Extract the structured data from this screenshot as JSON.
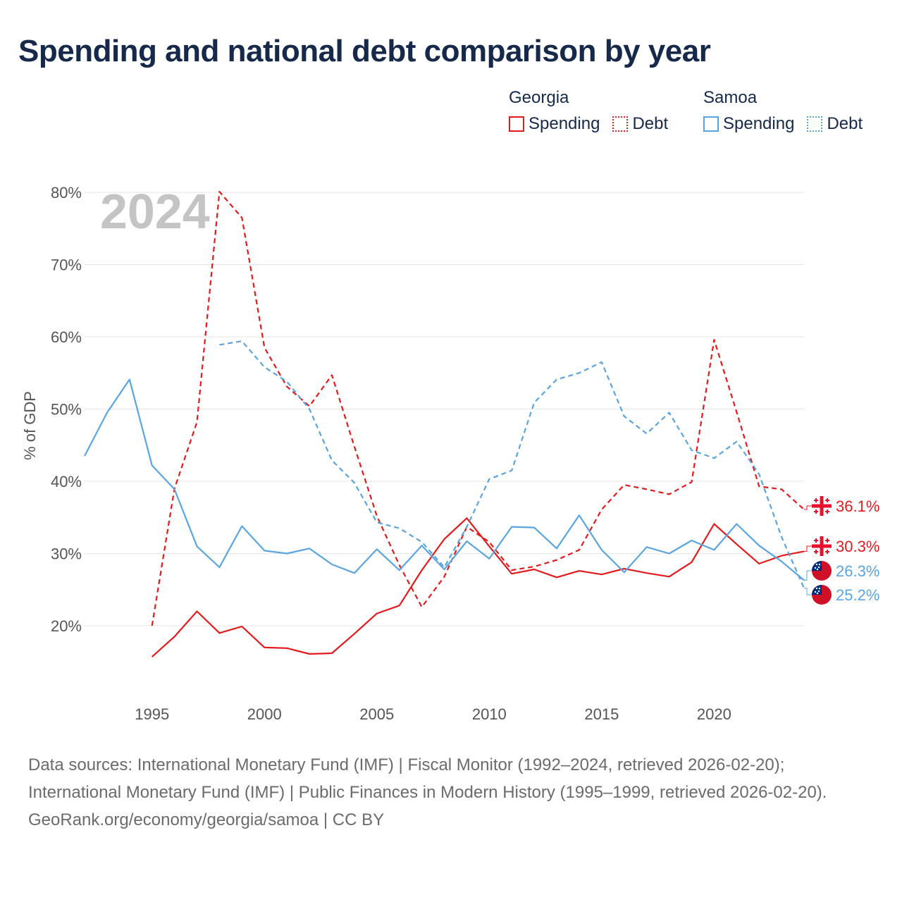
{
  "title": "Spending and national debt comparison by year",
  "legend": {
    "groups": [
      {
        "name": "Georgia",
        "color": "#e41a1c",
        "items": [
          {
            "label": "Spending",
            "style": "solid"
          },
          {
            "label": "Debt",
            "style": "dotted"
          }
        ]
      },
      {
        "name": "Samoa",
        "color": "#5aa5e0",
        "items": [
          {
            "label": "Spending",
            "style": "solid"
          },
          {
            "label": "Debt",
            "style": "dotted"
          }
        ]
      }
    ]
  },
  "chart_data": {
    "type": "line",
    "title": "Spending and national debt comparison by year",
    "ylabel": "% of GDP",
    "xlabel": "",
    "year_watermark": "2024",
    "x_range": [
      1992,
      2024
    ],
    "ylim": [
      11,
      82
    ],
    "yticks": [
      20,
      30,
      40,
      50,
      60,
      70,
      80
    ],
    "ytick_labels": [
      "20%",
      "30%",
      "40%",
      "50%",
      "60%",
      "70%",
      "80%"
    ],
    "xticks": [
      1995,
      2000,
      2005,
      2010,
      2015,
      2020
    ],
    "xtick_labels": [
      "1995",
      "2000",
      "2005",
      "2010",
      "2015",
      "2020"
    ],
    "grid": true,
    "series": [
      {
        "name": "Georgia Spending",
        "country": "Georgia",
        "color": "#e41a1c",
        "dash": "solid",
        "end_label": "30.3%",
        "flag": "georgia-flag-icon",
        "x": [
          1995,
          1996,
          1997,
          1998,
          1999,
          2000,
          2001,
          2002,
          2003,
          2004,
          2005,
          2006,
          2007,
          2008,
          2009,
          2010,
          2011,
          2012,
          2013,
          2014,
          2015,
          2016,
          2017,
          2018,
          2019,
          2020,
          2021,
          2022,
          2023,
          2024
        ],
        "values": [
          15.7,
          18.5,
          22.0,
          19.0,
          19.9,
          17.0,
          16.9,
          16.1,
          16.2,
          18.9,
          21.7,
          22.8,
          27.7,
          32.0,
          34.9,
          31.0,
          27.2,
          27.8,
          26.7,
          27.6,
          27.1,
          27.9,
          27.3,
          26.8,
          28.8,
          34.1,
          31.3,
          28.6,
          29.7,
          30.3
        ]
      },
      {
        "name": "Georgia Debt",
        "country": "Georgia",
        "color": "#e41a1c",
        "dash": "dashed",
        "end_label": "36.1%",
        "flag": "georgia-flag-icon",
        "x": [
          1995,
          1996,
          1997,
          1998,
          1999,
          2000,
          2001,
          2002,
          2003,
          2004,
          2005,
          2006,
          2007,
          2008,
          2009,
          2010,
          2011,
          2012,
          2013,
          2014,
          2015,
          2016,
          2017,
          2018,
          2019,
          2020,
          2021,
          2022,
          2023,
          2024
        ],
        "values": [
          20.0,
          39.0,
          48.2,
          80.1,
          76.5,
          58.5,
          53.1,
          50.4,
          54.7,
          44.8,
          35.2,
          28.4,
          22.6,
          26.8,
          33.7,
          31.6,
          27.7,
          28.2,
          29.1,
          30.5,
          36.1,
          39.5,
          38.9,
          38.2,
          39.9,
          59.6,
          49.6,
          39.3,
          38.9,
          36.1
        ]
      },
      {
        "name": "Samoa Spending",
        "country": "Samoa",
        "color": "#5aa5e0",
        "dash": "solid",
        "end_label": "26.3%",
        "flag": "samoa-flag-icon",
        "x": [
          1992,
          1993,
          1994,
          1995,
          1996,
          1997,
          1998,
          1999,
          2000,
          2001,
          2002,
          2003,
          2004,
          2005,
          2006,
          2007,
          2008,
          2009,
          2010,
          2011,
          2012,
          2013,
          2014,
          2015,
          2016,
          2017,
          2018,
          2019,
          2020,
          2021,
          2022,
          2023,
          2024
        ],
        "values": [
          43.5,
          49.5,
          54.1,
          42.2,
          38.9,
          31.0,
          28.1,
          33.8,
          30.4,
          30.0,
          30.7,
          28.5,
          27.3,
          30.6,
          27.7,
          31.1,
          27.8,
          31.7,
          29.3,
          33.7,
          33.6,
          30.7,
          35.3,
          30.5,
          27.4,
          30.9,
          30.0,
          31.8,
          30.5,
          34.1,
          31.1,
          28.9,
          26.3
        ]
      },
      {
        "name": "Samoa Debt",
        "country": "Samoa",
        "color": "#5aa5e0",
        "dash": "dashed",
        "end_label": "25.2%",
        "flag": "samoa-flag-icon",
        "x": [
          1998,
          1999,
          2000,
          2001,
          2002,
          2003,
          2004,
          2005,
          2006,
          2007,
          2008,
          2009,
          2010,
          2011,
          2012,
          2013,
          2014,
          2015,
          2016,
          2017,
          2018,
          2019,
          2020,
          2021,
          2022,
          2023,
          2024
        ],
        "values": [
          58.9,
          59.4,
          55.8,
          53.8,
          50.0,
          42.9,
          39.8,
          34.3,
          33.5,
          31.6,
          28.1,
          33.7,
          40.3,
          41.5,
          50.9,
          54.1,
          55.0,
          56.5,
          49.0,
          46.6,
          49.5,
          44.3,
          43.2,
          45.5,
          41.0,
          32.3,
          25.2
        ]
      }
    ]
  },
  "footer": {
    "sources": "Data sources: International Monetary Fund (IMF) | Fiscal Monitor (1992–2024, retrieved 2026-02-20); International Monetary Fund (IMF) | Public Finances in Modern History (1995–1999, retrieved 2026-02-20).",
    "credit": "GeoRank.org/economy/georgia/samoa | CC BY"
  }
}
